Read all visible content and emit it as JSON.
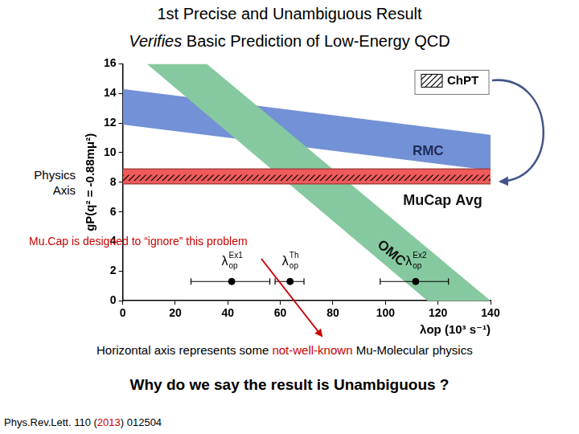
{
  "slide": {
    "title": [
      [
        {
          "text": "1st Precise and Unambiguous Result"
        }
      ],
      [
        {
          "text": "Verifies",
          "italic": true
        },
        {
          "text": " Basic Prediction of Low-Energy QCD"
        }
      ]
    ],
    "side_label": [
      "Physics",
      "Axis"
    ],
    "note_arrow": "Mu.Cap is designed to “ignore” this problem",
    "axis_note": [
      {
        "text": "Horizontal axis represents some "
      },
      {
        "text": "not-well-known",
        "color": "#cc0000"
      },
      {
        "text": " Mu-Molecular physics"
      }
    ],
    "question": "Why do we say the result is Unambiguous ?",
    "reference": [
      {
        "text": "Phys.Rev.Lett. 110 ("
      },
      {
        "text": "2013",
        "color": "#cc0000"
      },
      {
        "text": ") 012504"
      }
    ]
  },
  "chart_data": {
    "type": "scatter",
    "x_label": "λop (10³ s⁻¹)",
    "y_label": "gP(q² = -0.88mμ²)",
    "xlim": [
      0,
      140
    ],
    "xticks": [
      0,
      20,
      40,
      60,
      80,
      100,
      120,
      140
    ],
    "ylim": [
      0,
      16
    ],
    "yticks": [
      0,
      2,
      4,
      6,
      8,
      10,
      12,
      14,
      16
    ],
    "grid": false,
    "legend": "upper right",
    "bands": [
      {
        "name": "RMC",
        "color": "#7391d6",
        "edges": [
          {
            "x": [
              0,
              140
            ],
            "y": [
              14.3,
              11.2
            ]
          },
          {
            "x": [
              0,
              140
            ],
            "y": [
              11.9,
              8.8
            ]
          }
        ]
      },
      {
        "name": "OMC",
        "color": "#86c9a0",
        "edges": [
          {
            "x": [
              9.2,
              116
            ],
            "y": [
              16,
              0
            ]
          },
          {
            "x": [
              32,
              140
            ],
            "y": [
              16,
              0
            ]
          }
        ]
      },
      {
        "name": "MuCap Avg",
        "color": "#f05a5a",
        "line_style": "solid",
        "edges": [
          {
            "x": [
              0,
              140
            ],
            "y": [
              8.9,
              8.9
            ]
          },
          {
            "x": [
              0,
              140
            ],
            "y": [
              7.9,
              7.9
            ]
          }
        ]
      },
      {
        "name": "ChPT",
        "color": "#000000",
        "line_style": "hatched",
        "edges": [
          {
            "x": [
              0,
              140
            ],
            "y": [
              8.5,
              8.5
            ]
          },
          {
            "x": [
              0,
              140
            ],
            "y": [
              8.1,
              8.1
            ]
          }
        ]
      }
    ],
    "points": {
      "color": "#000000",
      "marker": "circle",
      "labels": [
        {
          "text": "λ",
          "sub": "op",
          "sup": "Ex1"
        },
        {
          "text": "λ",
          "sub": "op",
          "sup": "Th"
        },
        {
          "text": "λ",
          "sub": "op",
          "sup": "Ex2"
        }
      ],
      "x": [
        41.5,
        63.7,
        111.5
      ],
      "y": [
        1.3,
        1.3,
        1.3
      ],
      "x_low": [
        26,
        58,
        98
      ],
      "x_high": [
        56,
        69,
        124
      ]
    }
  }
}
